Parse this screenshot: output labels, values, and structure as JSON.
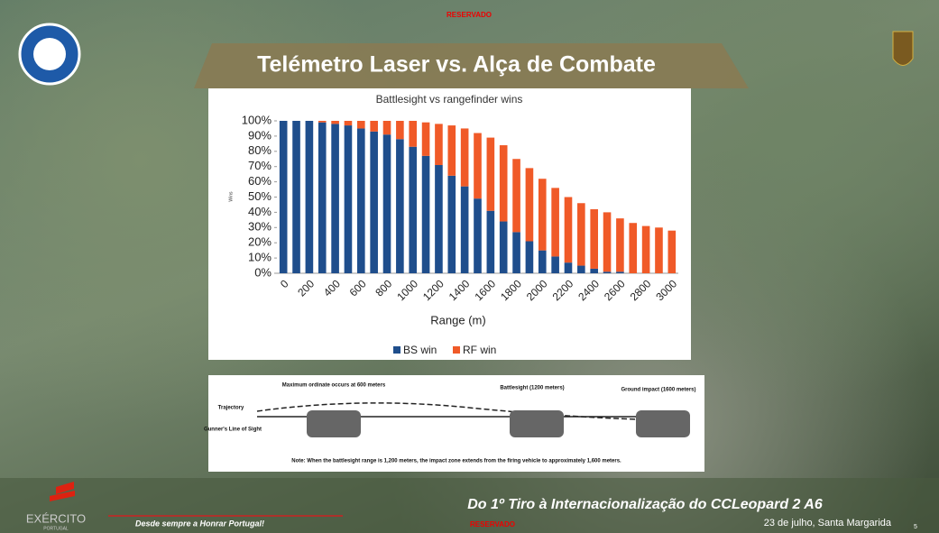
{
  "slide": {
    "classification_top": "RESERVADO",
    "title": "Telémetro Laser vs. Alça de Combate",
    "footer_title": "Do 1º Tiro à Internacionalização do CCLeopard 2 A6",
    "motto": "Desde sempre a Honrar Portugal!",
    "classification_bottom": "RESERVADO",
    "date_place": "23 de julho, Santa Margarida",
    "page_number": "5",
    "brand": "EXÉRCITO",
    "brand_sub": "PORTUGAL"
  },
  "diagram": {
    "max_ordinate": "Maximum ordinate occurs at 600 meters",
    "battlesight": "Battlesight (1200 meters)",
    "ground_impact": "Ground impact (1600 meters)",
    "trajectory": "Trajectory",
    "line_of_sight": "Gunner's Line of Sight",
    "note": "Note: When the battlesight range is 1,200 meters, the impact zone extends from the firing vehicle to approximately 1,600 meters."
  },
  "chart_data": {
    "type": "bar",
    "stacked": true,
    "title": "Battlesight vs rangefinder wins",
    "x_label": "Range (m)",
    "y_label": "Wins",
    "categories": [
      "0",
      null,
      "200",
      null,
      "400",
      null,
      "600",
      null,
      "800",
      null,
      "1000",
      null,
      "1200",
      null,
      "1400",
      null,
      "1600",
      null,
      "1800",
      null,
      "2000",
      null,
      "2200",
      null,
      "2400",
      null,
      "2600",
      null,
      "2800",
      null,
      "3000"
    ],
    "series": [
      {
        "name": "BS win",
        "color": "#1f4e8c",
        "values": [
          100,
          100,
          100,
          99,
          98,
          97,
          95,
          93,
          91,
          88,
          83,
          77,
          71,
          64,
          57,
          49,
          41,
          34,
          27,
          21,
          15,
          11,
          7,
          5,
          3,
          1,
          1,
          0,
          0,
          0,
          0
        ]
      },
      {
        "name": "RF win",
        "color": "#f05a28",
        "values": [
          0,
          0,
          0,
          1,
          2,
          3,
          5,
          7,
          9,
          12,
          17,
          22,
          27,
          33,
          38,
          43,
          48,
          50,
          48,
          48,
          47,
          45,
          43,
          41,
          39,
          39,
          35,
          33,
          31,
          30,
          28
        ]
      }
    ],
    "ylim": [
      0,
      100
    ],
    "yticks": [
      {
        "value": 0,
        "label": "0%"
      },
      {
        "value": 10,
        "label": "10%"
      },
      {
        "value": 20,
        "label": "20%"
      },
      {
        "value": 30,
        "label": "30%"
      },
      {
        "value": 40,
        "label": "40%"
      },
      {
        "value": 50,
        "label": "50%"
      },
      {
        "value": 60,
        "label": "60%"
      },
      {
        "value": 70,
        "label": "70%"
      },
      {
        "value": 80,
        "label": "80%"
      },
      {
        "value": 90,
        "label": "90%"
      },
      {
        "value": 100,
        "label": "100%"
      }
    ],
    "legend": "bottom"
  }
}
